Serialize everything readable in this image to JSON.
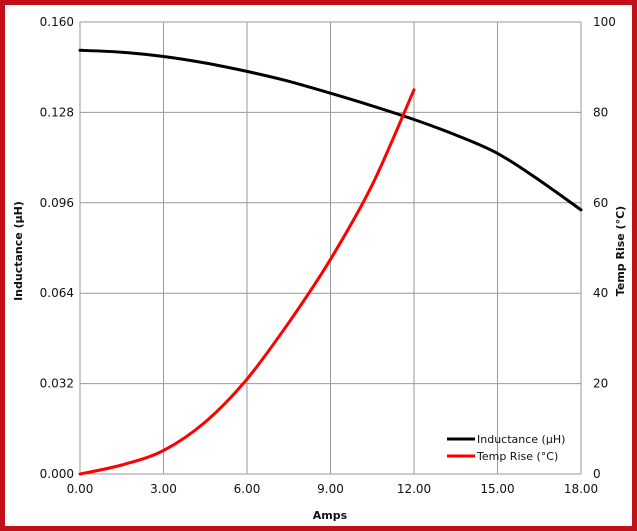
{
  "chart_data": {
    "type": "line",
    "xlabel": "Amps",
    "ylabel_left": "Inductance (µH)",
    "ylabel_right": "Temp Rise (°C)",
    "x_ticks": [
      "0.00",
      "3.00",
      "6.00",
      "9.00",
      "12.00",
      "15.00",
      "18.00"
    ],
    "y_left_ticks": [
      "0.000",
      "0.032",
      "0.064",
      "0.096",
      "0.128",
      "0.160"
    ],
    "y_right_ticks": [
      "0",
      "20",
      "40",
      "60",
      "80",
      "100"
    ],
    "xlim": [
      0,
      18
    ],
    "ylim_left": [
      0,
      0.16
    ],
    "ylim_right": [
      0,
      100
    ],
    "grid": true,
    "legend_position": "bottom-right",
    "series": [
      {
        "name": "Inductance (µH)",
        "axis": "left",
        "color": "#000000",
        "x": [
          0,
          1.5,
          3,
          4.5,
          6,
          7.5,
          9,
          10.5,
          12,
          13.5,
          15,
          16.5,
          18
        ],
        "y": [
          0.15,
          0.1493,
          0.1478,
          0.1455,
          0.1425,
          0.139,
          0.1348,
          0.1303,
          0.1255,
          0.12,
          0.1135,
          0.104,
          0.0935
        ]
      },
      {
        "name": "Temp Rise (°C)",
        "axis": "right",
        "color": "#ff0000",
        "x": [
          0,
          1.5,
          3,
          4.5,
          6,
          7.5,
          9,
          10.5,
          12
        ],
        "y": [
          0,
          2,
          5.2,
          11.5,
          21,
          33.5,
          47.5,
          64,
          85
        ]
      }
    ]
  }
}
